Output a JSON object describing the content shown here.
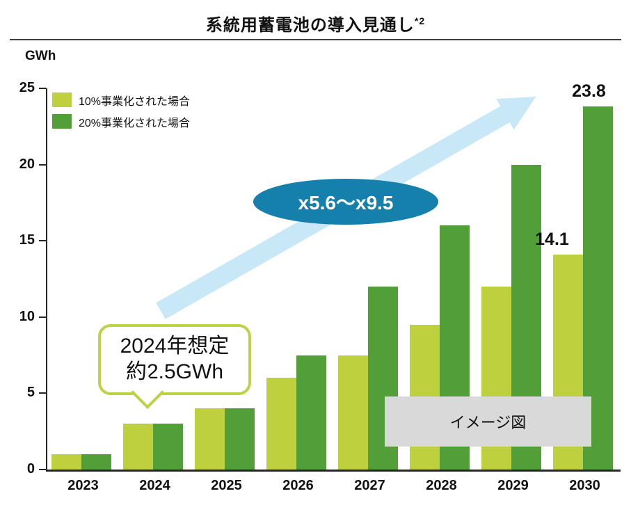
{
  "title": {
    "text": "系統用蓄電池の導入見通し",
    "superscript": "*2"
  },
  "axis": {
    "unit_label": "GWh",
    "y_ticks": [
      0,
      5,
      10,
      15,
      20,
      25
    ]
  },
  "chart_data": {
    "type": "bar",
    "title": "系統用蓄電池の導入見通し*2",
    "xlabel": "",
    "ylabel": "GWh",
    "ylim": [
      0,
      25
    ],
    "grid": false,
    "legend_position": "top-left",
    "categories": [
      "2023",
      "2024",
      "2025",
      "2026",
      "2027",
      "2028",
      "2029",
      "2030"
    ],
    "series": [
      {
        "name": "10%事業化された場合",
        "color": "#BFD03E",
        "values": [
          1,
          3,
          4,
          6,
          7.5,
          9.5,
          12,
          14.1
        ]
      },
      {
        "name": "20%事業化された場合",
        "color": "#529E38",
        "values": [
          1,
          3,
          4,
          7.5,
          12,
          16,
          20,
          23.8
        ]
      }
    ],
    "value_labels": [
      {
        "series": 0,
        "index": 7,
        "text": "14.1",
        "dx": -23
      },
      {
        "series": 1,
        "index": 7,
        "text": "23.8",
        "dx": -13
      }
    ]
  },
  "annotations": {
    "callout": {
      "line1": "2024年想定",
      "line2": "約2.5GWh",
      "border_color": "#BFD144"
    },
    "multiplier": {
      "text": "x5.6～x9.5",
      "bg_color": "#1580AB",
      "text_color": "#FFFFFF"
    },
    "watermark": {
      "text": "イメージ図",
      "bg_color": "#D9D9D9"
    },
    "arrow": {
      "color": "#C8E8F8"
    }
  }
}
